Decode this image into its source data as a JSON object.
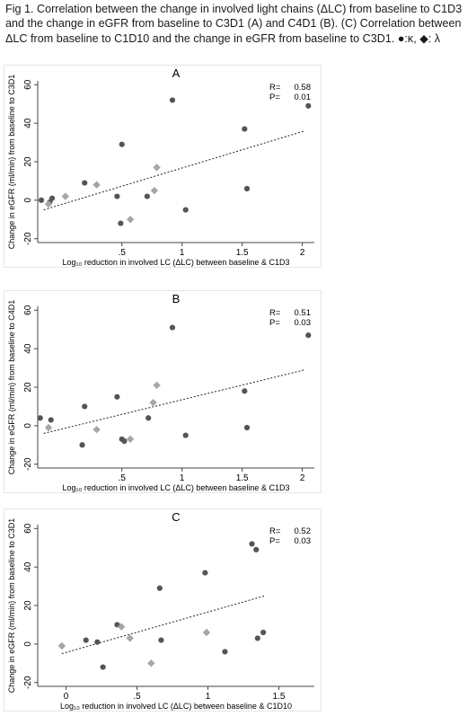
{
  "caption": {
    "text": "Fig 1. Correlation between the change in involved light chains (ΔLC) from baseline to C1D3 and the change in eGFR from baseline to C3D1 (A) and C4D1 (B). (C) Correlation between ΔLC from baseline to C1D10 and the change in eGFR from baseline to C3D1. ●:κ, ◆: λ"
  },
  "colors": {
    "kappa": "#555555",
    "lambda": "#a6a6a6",
    "trend": "#333333",
    "frame": "#e6e6e6"
  },
  "icons": {
    "kappa": "filled-circle",
    "lambda": "filled-diamond"
  },
  "chart_data": [
    {
      "type": "scatter",
      "title": "A",
      "ylabel": "Change in eGFR (ml/min) from baseline to C3D1",
      "xlabel": "Log₁₀ reduction in involved LC (ΔLC) between baseline & C1D3",
      "xlim": [
        -0.2,
        2.1
      ],
      "ylim": [
        -22,
        62
      ],
      "xticks": [
        ".5",
        "1",
        "1.5",
        "2"
      ],
      "yticks": [
        "-20",
        "0",
        "20",
        "40",
        "60"
      ],
      "grid": false,
      "stats": {
        "r_label": "R=",
        "r_value": "0.58",
        "p_label": "P=",
        "p_value": "0.01"
      },
      "trendline": {
        "x": [
          -0.15,
          2.02
        ],
        "y": [
          -5,
          36
        ]
      },
      "series": [
        {
          "marker": "circle",
          "x": [
            -0.17,
            -0.1,
            -0.08,
            0.19,
            0.46,
            0.49,
            0.5,
            0.71,
            0.92,
            1.03,
            1.52,
            1.54,
            2.05
          ],
          "y": [
            0,
            -1,
            1,
            9,
            2,
            -12,
            29,
            2,
            52,
            -5,
            37,
            6,
            49
          ]
        },
        {
          "marker": "diamond",
          "x": [
            -0.11,
            0.03,
            0.29,
            0.57,
            0.77,
            0.79
          ],
          "y": [
            -2,
            2,
            8,
            -10,
            5,
            17
          ]
        }
      ]
    },
    {
      "type": "scatter",
      "title": "B",
      "ylabel": "Change in eGFR (ml/min) from baseline to C4D1",
      "xlabel": "Log₁₀ reduction in involved LC (ΔLC) between baseline & C1D3",
      "xlim": [
        -0.2,
        2.1
      ],
      "ylim": [
        -22,
        62
      ],
      "xticks": [
        ".5",
        "1",
        "1.5",
        "2"
      ],
      "yticks": [
        "-20",
        "0",
        "20",
        "40",
        "60"
      ],
      "grid": false,
      "stats": {
        "r_label": "R=",
        "r_value": "0.51",
        "p_label": "P=",
        "p_value": "0.03"
      },
      "trendline": {
        "x": [
          -0.15,
          2.02
        ],
        "y": [
          -4,
          29
        ]
      },
      "series": [
        {
          "marker": "circle",
          "x": [
            -0.18,
            -0.09,
            0.17,
            0.19,
            0.46,
            0.5,
            0.52,
            0.72,
            0.92,
            1.03,
            1.52,
            1.54,
            2.05
          ],
          "y": [
            4,
            3,
            -10,
            10,
            15,
            -7,
            -8,
            4,
            51,
            -5,
            18,
            -1,
            47
          ]
        },
        {
          "marker": "diamond",
          "x": [
            -0.11,
            0.29,
            0.57,
            0.76,
            0.79
          ],
          "y": [
            -1,
            -2,
            -7,
            12,
            21
          ]
        }
      ]
    },
    {
      "type": "scatter",
      "title": "C",
      "ylabel": "Change in eGFR (ml/min) from baseline to C3D1",
      "xlabel": "Log₁₀ reduction in involved LC (ΔLC) between baseline & C1D10",
      "xlim": [
        -0.2,
        1.75
      ],
      "ylim": [
        -22,
        62
      ],
      "xticks": [
        "0",
        ".5",
        "1",
        "1.5"
      ],
      "yticks": [
        "-20",
        "0",
        "20",
        "40",
        "60"
      ],
      "grid": false,
      "stats": {
        "r_label": "R=",
        "r_value": "0.52",
        "p_label": "P=",
        "p_value": "0.03"
      },
      "trendline": {
        "x": [
          -0.03,
          1.4
        ],
        "y": [
          -5,
          25
        ]
      },
      "series": [
        {
          "marker": "circle",
          "x": [
            0.14,
            0.22,
            0.26,
            0.36,
            0.66,
            0.67,
            0.98,
            1.12,
            1.31,
            1.34,
            1.35,
            1.39
          ],
          "y": [
            2,
            1,
            -12,
            10,
            29,
            2,
            37,
            -4,
            52,
            49,
            3,
            6
          ]
        },
        {
          "marker": "diamond",
          "x": [
            -0.03,
            0.39,
            0.45,
            0.6,
            0.99
          ],
          "y": [
            -1,
            9,
            3,
            -10,
            6
          ]
        }
      ]
    }
  ]
}
